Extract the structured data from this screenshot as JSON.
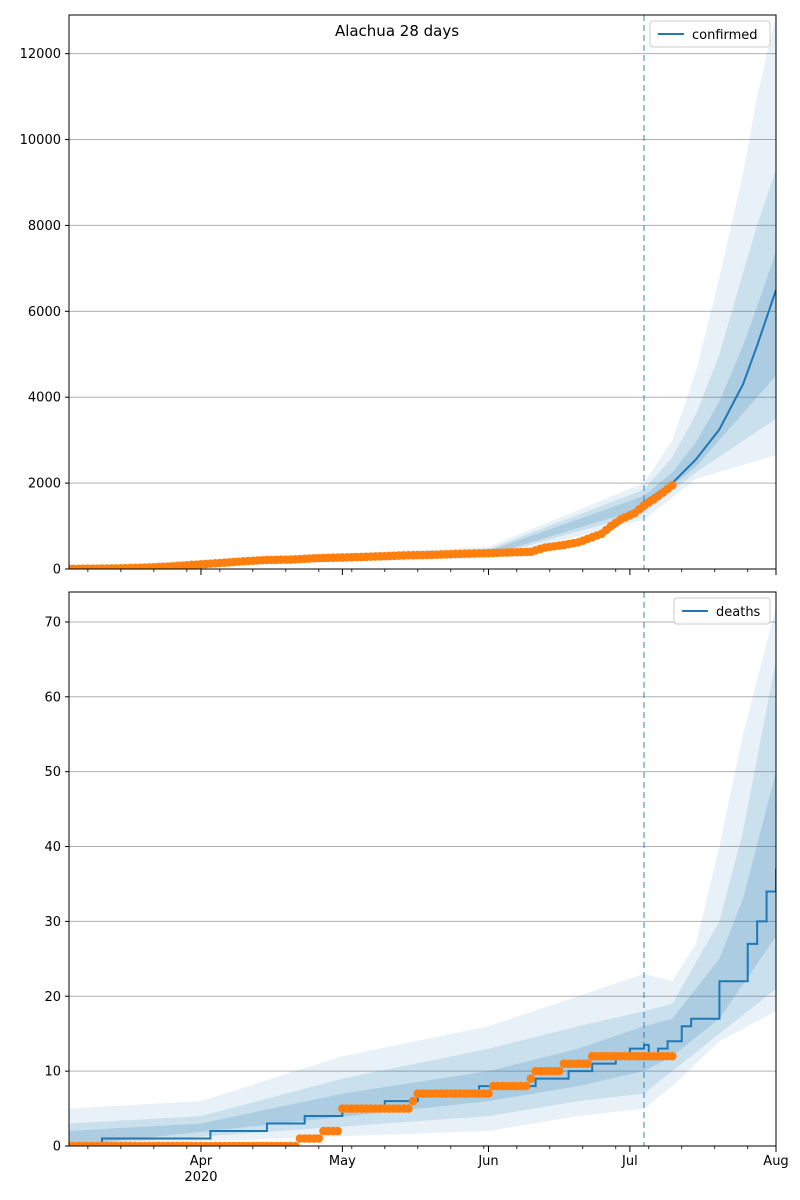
{
  "figure": {
    "title": "Alachua 28 days"
  },
  "colors": {
    "model": "#1f77b4",
    "observed": "#ff7f0e",
    "band": "#1f77b4",
    "grid": "#b0b0b0",
    "divider": "#1f77b4"
  },
  "chart_data": [
    {
      "type": "line",
      "title": "Alachua 28 days",
      "xlabel": "",
      "ylabel": "",
      "xlim": [
        "2020-03-04",
        "2020-08-01"
      ],
      "ylim": [
        0,
        12900
      ],
      "yticks": [
        0,
        2000,
        4000,
        6000,
        8000,
        10000,
        12000
      ],
      "grid": "horizontal",
      "legend": {
        "position": "top-right",
        "entries": [
          "confirmed"
        ]
      },
      "forecast_start": "2020-07-04",
      "series": [
        {
          "name": "confirmed",
          "kind": "model-median",
          "points": [
            [
              "2020-03-04",
              10
            ],
            [
              "2020-03-20",
              25
            ],
            [
              "2020-04-01",
              90
            ],
            [
              "2020-04-15",
              170
            ],
            [
              "2020-05-01",
              260
            ],
            [
              "2020-05-15",
              320
            ],
            [
              "2020-06-01",
              360
            ],
            [
              "2020-06-10",
              400
            ],
            [
              "2020-06-15",
              470
            ],
            [
              "2020-06-20",
              560
            ],
            [
              "2020-06-25",
              760
            ],
            [
              "2020-06-30",
              1150
            ],
            [
              "2020-07-04",
              1560
            ],
            [
              "2020-07-10",
              2000
            ],
            [
              "2020-07-15",
              2550
            ],
            [
              "2020-07-20",
              3250
            ],
            [
              "2020-07-25",
              4300
            ],
            [
              "2020-07-28",
              5200
            ],
            [
              "2020-08-01",
              6500
            ]
          ]
        },
        {
          "name": "observed",
          "kind": "markers",
          "points": [
            [
              "2020-03-04",
              5
            ],
            [
              "2020-03-10",
              8
            ],
            [
              "2020-03-15",
              15
            ],
            [
              "2020-03-20",
              30
            ],
            [
              "2020-03-25",
              55
            ],
            [
              "2020-04-01",
              110
            ],
            [
              "2020-04-05",
              140
            ],
            [
              "2020-04-10",
              180
            ],
            [
              "2020-04-15",
              210
            ],
            [
              "2020-04-20",
              220
            ],
            [
              "2020-04-25",
              250
            ],
            [
              "2020-05-01",
              270
            ],
            [
              "2020-05-05",
              280
            ],
            [
              "2020-05-10",
              300
            ],
            [
              "2020-05-15",
              320
            ],
            [
              "2020-05-20",
              330
            ],
            [
              "2020-05-25",
              350
            ],
            [
              "2020-06-01",
              370
            ],
            [
              "2020-06-05",
              385
            ],
            [
              "2020-06-10",
              400
            ],
            [
              "2020-06-13",
              500
            ],
            [
              "2020-06-17",
              560
            ],
            [
              "2020-06-20",
              620
            ],
            [
              "2020-06-22",
              700
            ],
            [
              "2020-06-25",
              820
            ],
            [
              "2020-06-27",
              1000
            ],
            [
              "2020-06-29",
              1150
            ],
            [
              "2020-07-02",
              1300
            ],
            [
              "2020-07-04",
              1480
            ],
            [
              "2020-07-06",
              1620
            ],
            [
              "2020-07-08",
              1780
            ],
            [
              "2020-07-10",
              1950
            ]
          ]
        }
      ],
      "bands": [
        {
          "level": "outer",
          "lower": [
            [
              "2020-03-04",
              0
            ],
            [
              "2020-06-01",
              250
            ],
            [
              "2020-07-04",
              1150
            ],
            [
              "2020-07-15",
              2100
            ],
            [
              "2020-08-01",
              2650
            ]
          ],
          "upper": [
            [
              "2020-03-04",
              60
            ],
            [
              "2020-06-01",
              520
            ],
            [
              "2020-07-04",
              2000
            ],
            [
              "2020-07-10",
              3000
            ],
            [
              "2020-07-15",
              4600
            ],
            [
              "2020-07-20",
              6800
            ],
            [
              "2020-07-25",
              9200
            ],
            [
              "2020-07-28",
              11000
            ],
            [
              "2020-08-01",
              12900
            ]
          ]
        },
        {
          "level": "middle",
          "lower": [
            [
              "2020-03-04",
              0
            ],
            [
              "2020-06-01",
              290
            ],
            [
              "2020-07-04",
              1300
            ],
            [
              "2020-07-15",
              2250
            ],
            [
              "2020-08-01",
              3500
            ]
          ],
          "upper": [
            [
              "2020-03-04",
              40
            ],
            [
              "2020-06-01",
              460
            ],
            [
              "2020-07-04",
              1850
            ],
            [
              "2020-07-10",
              2600
            ],
            [
              "2020-07-15",
              3600
            ],
            [
              "2020-07-20",
              5000
            ],
            [
              "2020-07-25",
              6900
            ],
            [
              "2020-07-28",
              8000
            ],
            [
              "2020-08-01",
              9300
            ]
          ]
        },
        {
          "level": "inner",
          "lower": [
            [
              "2020-03-04",
              0
            ],
            [
              "2020-06-01",
              320
            ],
            [
              "2020-07-04",
              1420
            ],
            [
              "2020-07-15",
              2380
            ],
            [
              "2020-08-01",
              4500
            ]
          ],
          "upper": [
            [
              "2020-03-04",
              25
            ],
            [
              "2020-06-01",
              420
            ],
            [
              "2020-07-04",
              1700
            ],
            [
              "2020-07-10",
              2250
            ],
            [
              "2020-07-15",
              2950
            ],
            [
              "2020-07-20",
              3900
            ],
            [
              "2020-07-25",
              5200
            ],
            [
              "2020-07-28",
              6100
            ],
            [
              "2020-08-01",
              7400
            ]
          ]
        }
      ]
    },
    {
      "type": "line",
      "title": "",
      "xlabel": "",
      "ylabel": "",
      "xlim": [
        "2020-03-04",
        "2020-08-01"
      ],
      "ylim": [
        0,
        74
      ],
      "yticks": [
        0,
        10,
        20,
        30,
        40,
        50,
        60,
        70
      ],
      "xticks": [
        {
          "date": "2020-04-01",
          "label": "Apr",
          "sublabel": "2020"
        },
        {
          "date": "2020-05-01",
          "label": "May"
        },
        {
          "date": "2020-06-01",
          "label": "Jun"
        },
        {
          "date": "2020-07-01",
          "label": "Jul"
        },
        {
          "date": "2020-08-01",
          "label": "Aug"
        }
      ],
      "grid": "horizontal",
      "legend": {
        "position": "top-right",
        "entries": [
          "deaths"
        ]
      },
      "forecast_start": "2020-07-04",
      "series": [
        {
          "name": "deaths",
          "kind": "model-median-step",
          "points": [
            [
              "2020-03-04",
              0
            ],
            [
              "2020-03-11",
              1
            ],
            [
              "2020-04-03",
              2
            ],
            [
              "2020-04-15",
              3
            ],
            [
              "2020-04-23",
              4
            ],
            [
              "2020-05-01",
              5
            ],
            [
              "2020-05-10",
              6
            ],
            [
              "2020-05-17",
              7
            ],
            [
              "2020-05-30",
              8
            ],
            [
              "2020-06-03",
              8
            ],
            [
              "2020-06-11",
              9
            ],
            [
              "2020-06-18",
              10
            ],
            [
              "2020-06-23",
              11
            ],
            [
              "2020-06-28",
              12
            ],
            [
              "2020-07-01",
              13
            ],
            [
              "2020-07-04",
              13.5
            ],
            [
              "2020-07-05",
              12
            ],
            [
              "2020-07-07",
              13
            ],
            [
              "2020-07-09",
              14
            ],
            [
              "2020-07-12",
              16
            ],
            [
              "2020-07-14",
              17
            ],
            [
              "2020-07-20",
              22
            ],
            [
              "2020-07-26",
              27
            ],
            [
              "2020-07-28",
              30
            ],
            [
              "2020-07-30",
              34
            ],
            [
              "2020-08-01",
              37
            ]
          ]
        },
        {
          "name": "observed",
          "kind": "markers",
          "points": [
            [
              "2020-03-04",
              0
            ],
            [
              "2020-03-15",
              0
            ],
            [
              "2020-04-01",
              0
            ],
            [
              "2020-04-15",
              0
            ],
            [
              "2020-04-20",
              0
            ],
            [
              "2020-04-22",
              1
            ],
            [
              "2020-04-25",
              1
            ],
            [
              "2020-04-27",
              2
            ],
            [
              "2020-04-30",
              2
            ],
            [
              "2020-05-01",
              5
            ],
            [
              "2020-05-06",
              5
            ],
            [
              "2020-05-10",
              5
            ],
            [
              "2020-05-14",
              5
            ],
            [
              "2020-05-16",
              6
            ],
            [
              "2020-05-17",
              7
            ],
            [
              "2020-05-24",
              7
            ],
            [
              "2020-05-31",
              7
            ],
            [
              "2020-06-02",
              8
            ],
            [
              "2020-06-08",
              8
            ],
            [
              "2020-06-10",
              9
            ],
            [
              "2020-06-11",
              10
            ],
            [
              "2020-06-15",
              10
            ],
            [
              "2020-06-17",
              11
            ],
            [
              "2020-06-21",
              11
            ],
            [
              "2020-06-23",
              12
            ],
            [
              "2020-06-28",
              12
            ],
            [
              "2020-07-02",
              12
            ],
            [
              "2020-07-06",
              12
            ],
            [
              "2020-07-10",
              12
            ]
          ]
        }
      ],
      "bands": [
        {
          "level": "outer",
          "lower": [
            [
              "2020-03-04",
              0
            ],
            [
              "2020-06-01",
              2
            ],
            [
              "2020-06-20",
              4
            ],
            [
              "2020-07-04",
              5
            ],
            [
              "2020-07-10",
              8
            ],
            [
              "2020-07-20",
              14
            ],
            [
              "2020-08-01",
              18
            ]
          ],
          "upper": [
            [
              "2020-03-04",
              5
            ],
            [
              "2020-04-01",
              6
            ],
            [
              "2020-05-01",
              12
            ],
            [
              "2020-06-01",
              16
            ],
            [
              "2020-06-20",
              20
            ],
            [
              "2020-07-04",
              23
            ],
            [
              "2020-07-10",
              22
            ],
            [
              "2020-07-15",
              27
            ],
            [
              "2020-07-20",
              40
            ],
            [
              "2020-07-25",
              55
            ],
            [
              "2020-08-01",
              72
            ]
          ]
        },
        {
          "level": "middle",
          "lower": [
            [
              "2020-03-04",
              0
            ],
            [
              "2020-06-01",
              4
            ],
            [
              "2020-06-20",
              6
            ],
            [
              "2020-07-04",
              7
            ],
            [
              "2020-07-10",
              10
            ],
            [
              "2020-07-20",
              15
            ],
            [
              "2020-08-01",
              21
            ]
          ],
          "upper": [
            [
              "2020-03-04",
              3
            ],
            [
              "2020-04-01",
              4
            ],
            [
              "2020-05-01",
              9
            ],
            [
              "2020-06-01",
              13
            ],
            [
              "2020-06-20",
              16
            ],
            [
              "2020-07-04",
              18
            ],
            [
              "2020-07-10",
              19
            ],
            [
              "2020-07-20",
              30
            ],
            [
              "2020-07-25",
              42
            ],
            [
              "2020-08-01",
              65
            ]
          ]
        },
        {
          "level": "inner",
          "lower": [
            [
              "2020-03-04",
              0
            ],
            [
              "2020-06-01",
              6
            ],
            [
              "2020-06-20",
              8
            ],
            [
              "2020-07-04",
              10
            ],
            [
              "2020-07-10",
              12
            ],
            [
              "2020-07-20",
              17
            ],
            [
              "2020-08-01",
              28
            ]
          ],
          "upper": [
            [
              "2020-03-04",
              2
            ],
            [
              "2020-04-01",
              3
            ],
            [
              "2020-05-01",
              7
            ],
            [
              "2020-06-01",
              10
            ],
            [
              "2020-06-20",
              13
            ],
            [
              "2020-07-04",
              16
            ],
            [
              "2020-07-10",
              17
            ],
            [
              "2020-07-20",
              25
            ],
            [
              "2020-07-25",
              33
            ],
            [
              "2020-08-01",
              50
            ]
          ]
        }
      ]
    }
  ]
}
